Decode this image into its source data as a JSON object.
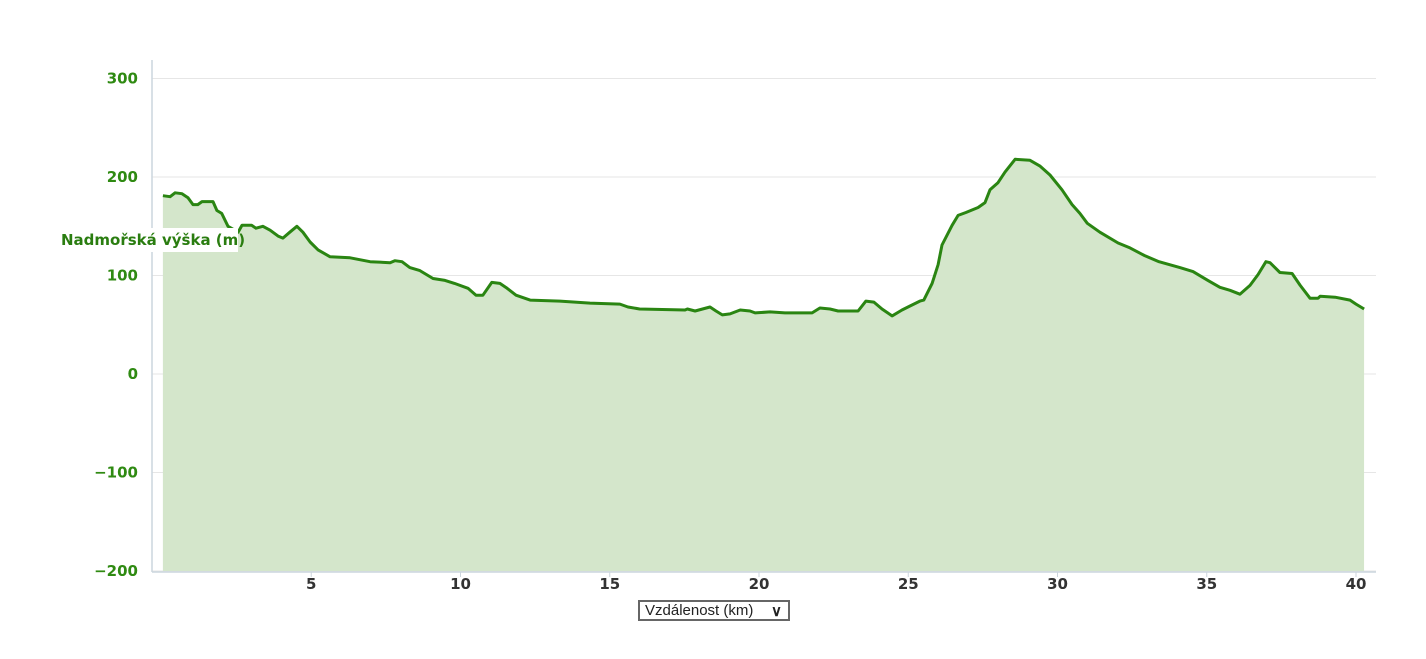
{
  "chart_data": {
    "type": "area",
    "title": "",
    "xlabel": "Vzdálenost (km)",
    "ylabel": "Nadmořská výška (m)",
    "xlim": [
      0,
      40.7
    ],
    "ylim": [
      -200,
      300
    ],
    "xticks": [
      5,
      10,
      15,
      20,
      25,
      30,
      35,
      40
    ],
    "yticks": [
      300,
      200,
      100,
      0,
      -100,
      -200
    ],
    "ytick_labels": [
      "300",
      "200",
      "100",
      "0",
      "−100",
      "−200"
    ],
    "grid": true,
    "colors": {
      "line": "#2a8512",
      "fill": "#d4e6cb",
      "ytick": "#2f8a12"
    },
    "x": [
      0.03,
      0.27,
      0.44,
      0.67,
      0.87,
      1.04,
      1.2,
      1.34,
      1.71,
      1.84,
      2.0,
      2.21,
      2.55,
      2.68,
      3.0,
      3.15,
      3.38,
      3.62,
      3.89,
      4.05,
      4.28,
      4.52,
      4.72,
      4.96,
      5.23,
      5.63,
      6.3,
      6.97,
      7.64,
      7.8,
      8.04,
      8.3,
      8.64,
      9.08,
      9.48,
      9.8,
      10.25,
      10.52,
      10.75,
      11.05,
      11.32,
      11.56,
      11.86,
      12.33,
      13.33,
      14.34,
      15.34,
      15.61,
      16.0,
      17.52,
      17.6,
      17.86,
      18.36,
      18.56,
      18.77,
      19.03,
      19.37,
      19.7,
      19.87,
      20.37,
      20.87,
      21.78,
      22.04,
      22.38,
      22.65,
      23.32,
      23.58,
      23.85,
      24.12,
      24.46,
      24.79,
      25.06,
      25.39,
      25.52,
      25.8,
      26.0,
      26.13,
      26.47,
      26.67,
      26.93,
      27.34,
      27.57,
      27.74,
      28.0,
      28.24,
      28.58,
      29.08,
      29.42,
      29.75,
      30.15,
      30.49,
      30.75,
      31.0,
      31.42,
      32.03,
      32.43,
      32.93,
      33.4,
      34.1,
      34.54,
      35.04,
      35.44,
      35.78,
      36.11,
      36.45,
      36.72,
      36.98,
      37.12,
      37.45,
      37.86,
      38.13,
      38.46,
      38.73,
      38.8,
      39.3,
      39.8,
      40.0,
      40.27
    ],
    "y": [
      181,
      180,
      184,
      183,
      179,
      172,
      172,
      175,
      175,
      166,
      163,
      150,
      144,
      151,
      151,
      148,
      150,
      146,
      140,
      138,
      144,
      150,
      144,
      134,
      126,
      119,
      118,
      114,
      113,
      115,
      114,
      108,
      105,
      97,
      95,
      92,
      87,
      80,
      80,
      93,
      92,
      87,
      80,
      75,
      74,
      72,
      71,
      68,
      66,
      65,
      66,
      64,
      68,
      64,
      60,
      61,
      65,
      64,
      62,
      63,
      62,
      62,
      67,
      66,
      64,
      64,
      74,
      73,
      66,
      59,
      65,
      69,
      74,
      75,
      92,
      111,
      131,
      151,
      161,
      164,
      169,
      174,
      187,
      194,
      205,
      218,
      217,
      211,
      202,
      187,
      172,
      163,
      153,
      144,
      133,
      128,
      120,
      114,
      108,
      104,
      95,
      88,
      85,
      81,
      90,
      101,
      114,
      113,
      103,
      102,
      90,
      77,
      77,
      79,
      78,
      75,
      71,
      66
    ]
  },
  "x_axis_selector": {
    "selected": "Vzdálenost (km)"
  }
}
